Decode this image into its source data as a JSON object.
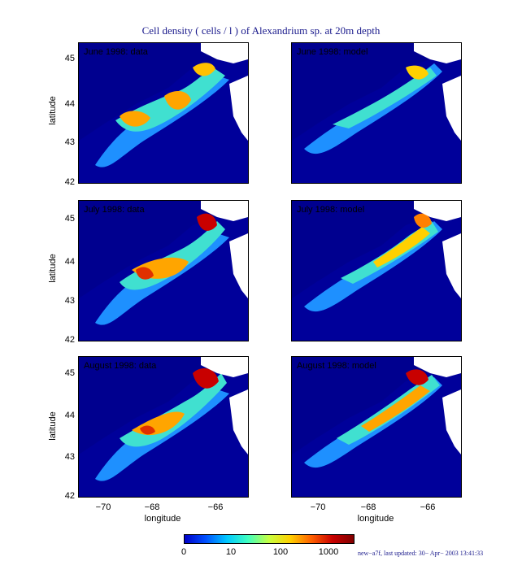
{
  "title": "Cell density ( cells / l ) of Alexandrium sp. at 20m depth",
  "panels": [
    {
      "label": "June 1998: data"
    },
    {
      "label": "June 1998: model"
    },
    {
      "label": "July 1998: data"
    },
    {
      "label": "July 1998: model"
    },
    {
      "label": "August 1998: data"
    },
    {
      "label": "August 1998: model"
    }
  ],
  "axes": {
    "ylabel": "latitude",
    "xlabel": "longitude",
    "yticks": [
      "45",
      "44",
      "43",
      "42"
    ],
    "xticks": [
      "−70",
      "−68",
      "−66"
    ]
  },
  "colorbar": {
    "ticks": [
      "0",
      "10",
      "100",
      "1000"
    ],
    "colors": [
      "#0000c8",
      "#00c8ff",
      "#ffd000",
      "#c80000"
    ]
  },
  "footer": "new−a7f, last updated: 30− Apr− 2003 13:41:33"
}
